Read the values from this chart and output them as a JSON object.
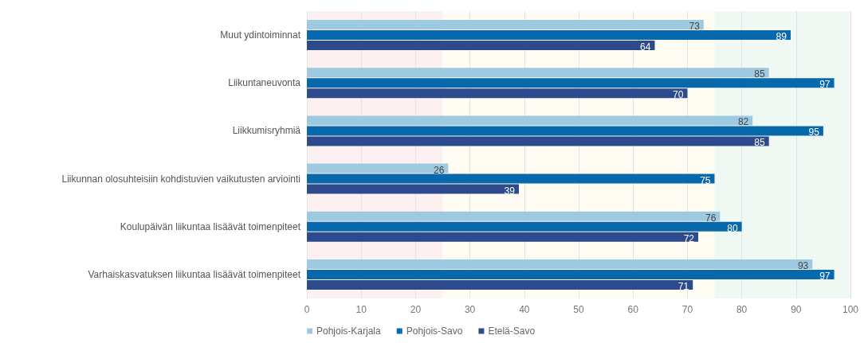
{
  "chart_data": {
    "type": "bar",
    "orientation": "horizontal",
    "categories": [
      "Muut ydintoiminnat",
      "Liikuntaneuvonta",
      "Liikkumisryhmiä",
      "Liikunnan olosuhteisiin kohdistuvien vaikutusten arviointi",
      "Koulupäivän liikuntaa lisäävät toimenpiteet",
      "Varhaiskasvatuksen liikuntaa lisäävät toimenpiteet"
    ],
    "series": [
      {
        "name": "Pohjois-Karjala",
        "color": "#9ecae1",
        "values": [
          73,
          85,
          82,
          26,
          76,
          93
        ]
      },
      {
        "name": "Pohjois-Savo",
        "color": "#0868ac",
        "values": [
          89,
          97,
          95,
          75,
          80,
          97
        ]
      },
      {
        "name": "Etelä-Savo",
        "color": "#2c4a8c",
        "values": [
          64,
          70,
          85,
          39,
          72,
          71
        ]
      }
    ],
    "xlim": [
      0,
      100
    ],
    "xticks": [
      0,
      10,
      20,
      30,
      40,
      50,
      60,
      70,
      80,
      90,
      100
    ],
    "bands": [
      {
        "axis": "x",
        "from": 0,
        "to": 25,
        "color": "#fdf0f1"
      },
      {
        "axis": "x",
        "from": 25,
        "to": 75,
        "color": "#fefcf3"
      },
      {
        "axis": "x",
        "from": 75,
        "to": 100,
        "color": "#f0f8f4"
      }
    ],
    "grid": "x",
    "legend": "bottom left",
    "data_labels": true
  }
}
